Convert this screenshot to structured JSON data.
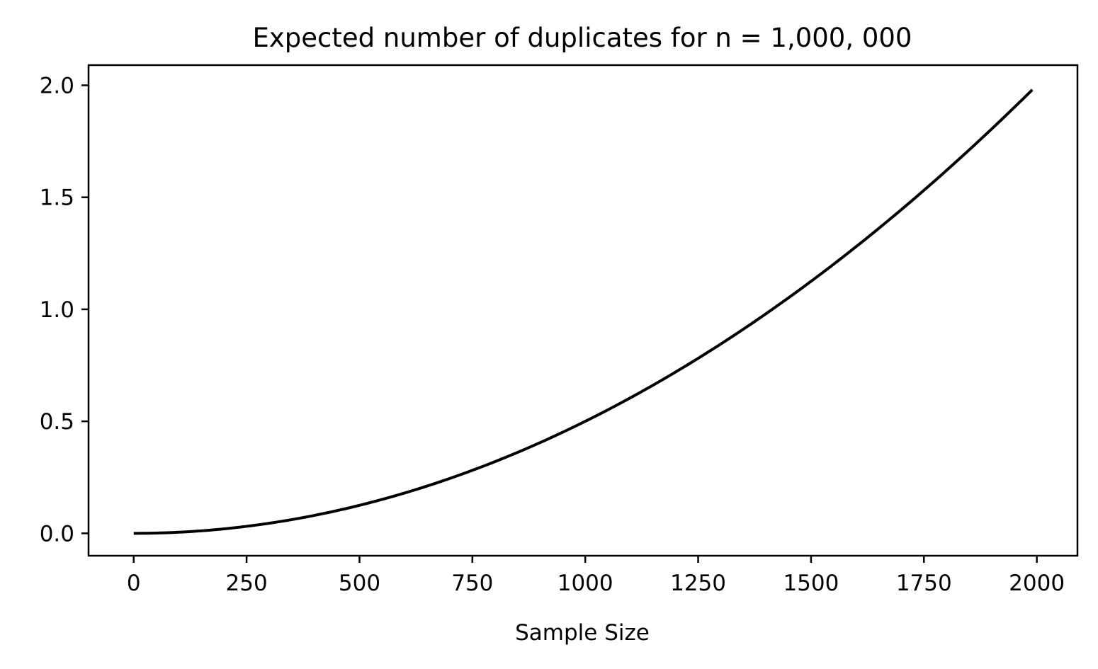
{
  "chart_data": {
    "type": "line",
    "title": "Expected number of duplicates for n = 1,000, 000",
    "xlabel": "Sample Size",
    "ylabel": "",
    "n": 1000000,
    "x_range": [
      0,
      1990
    ],
    "xlim": [
      -100,
      2090
    ],
    "ylim": [
      -0.1,
      2.09
    ],
    "xticks": [
      0,
      250,
      500,
      750,
      1000,
      1250,
      1500,
      1750,
      2000
    ],
    "xtick_labels": [
      "0",
      "250",
      "500",
      "750",
      "1000",
      "1250",
      "1500",
      "1750",
      "2000"
    ],
    "yticks": [
      0.0,
      0.5,
      1.0,
      1.5,
      2.0
    ],
    "ytick_labels": [
      "0.0",
      "0.5",
      "1.0",
      "1.5",
      "2.0"
    ],
    "grid": false,
    "legend": "none",
    "series": [
      {
        "color": "#000000",
        "x": [
          0,
          250,
          500,
          750,
          1000,
          1250,
          1500,
          1750,
          1990
        ],
        "y": [
          0.0,
          0.031,
          0.125,
          0.281,
          0.5,
          0.781,
          1.125,
          1.531,
          1.98
        ]
      }
    ]
  }
}
